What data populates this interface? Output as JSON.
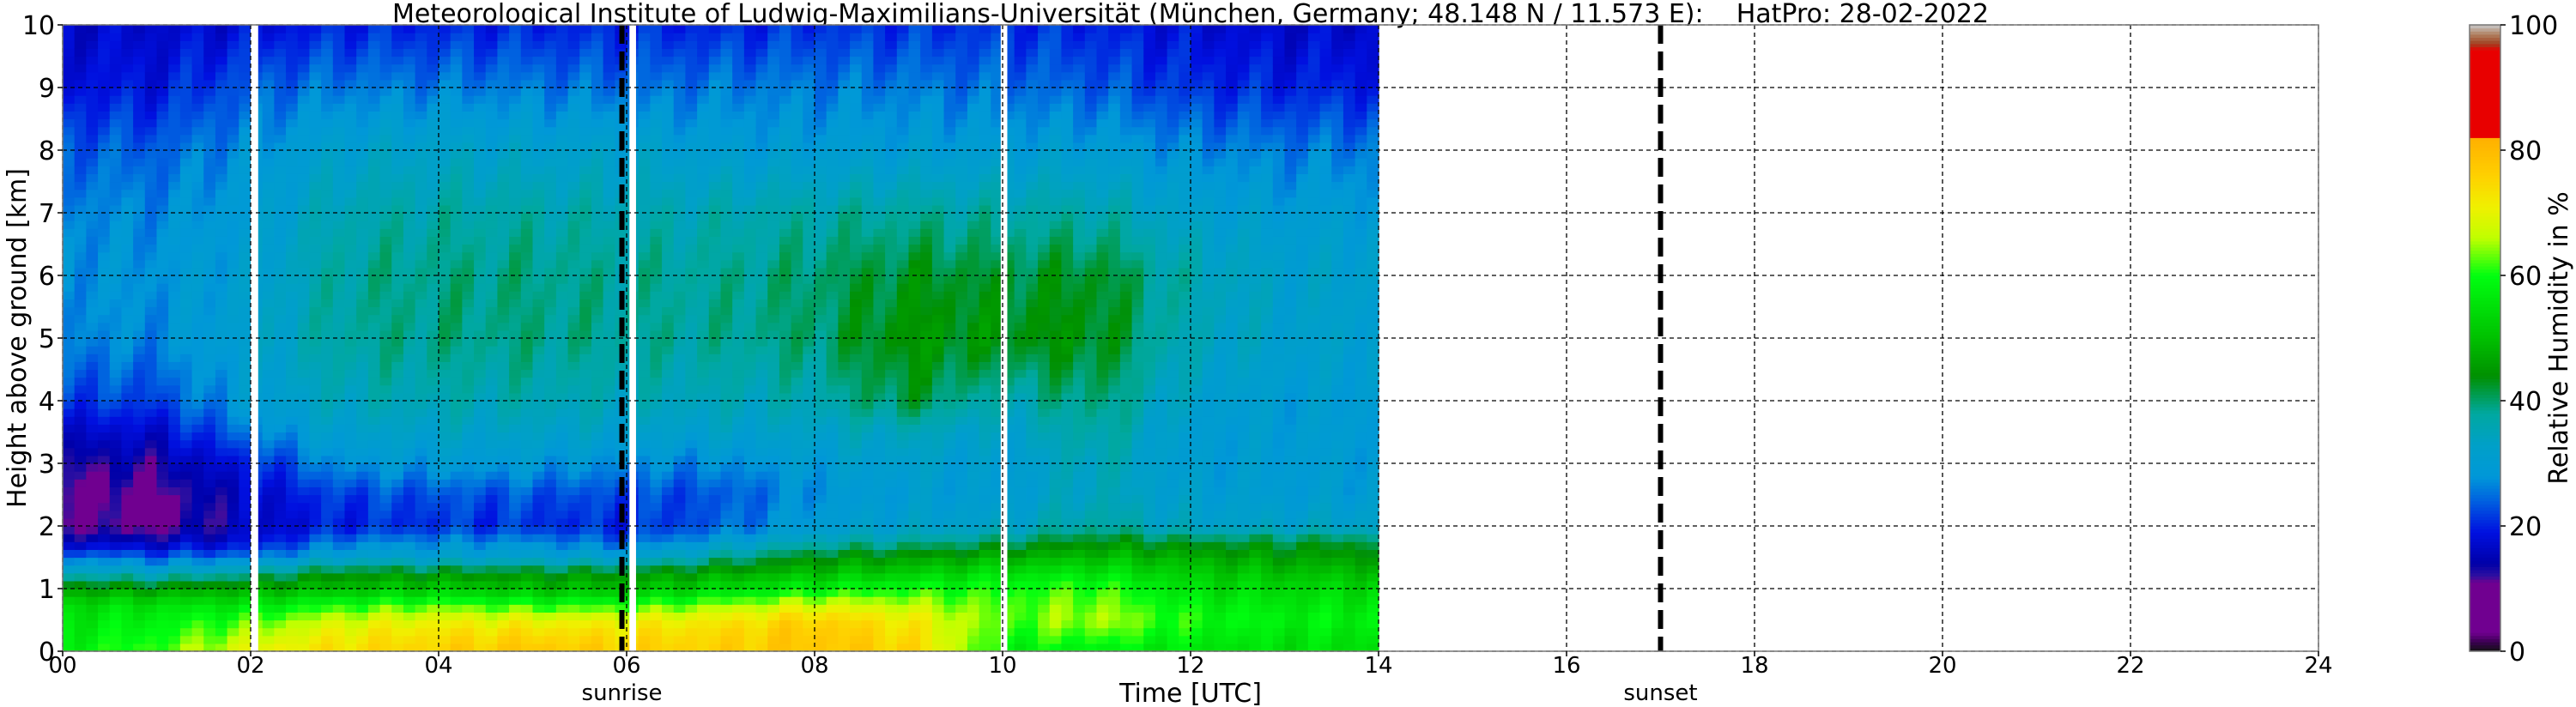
{
  "chart_data": {
    "type": "heatmap",
    "title": "Meteorological Institute of Ludwig-Maximilians-Universität (München, Germany; 48.148 N / 11.573 E):    HatPro: 28-02-2022",
    "xlabel": "Time [UTC]",
    "ylabel": "Height above ground [km]",
    "xlim": [
      0,
      24
    ],
    "ylim": [
      0,
      10
    ],
    "xticks": [
      "00",
      "02",
      "04",
      "06",
      "08",
      "10",
      "12",
      "14",
      "16",
      "18",
      "20",
      "22",
      "24"
    ],
    "xtick_values": [
      0,
      2,
      4,
      6,
      8,
      10,
      12,
      14,
      16,
      18,
      20,
      22,
      24
    ],
    "yticks": [
      "0",
      "1",
      "2",
      "3",
      "4",
      "5",
      "6",
      "7",
      "8",
      "9",
      "10"
    ],
    "grid": true,
    "markers": [
      {
        "label": "sunrise",
        "time": 5.95
      },
      {
        "label": "sunset",
        "time": 17.0
      }
    ],
    "missing_intervals": [
      [
        2.0,
        2.08
      ],
      [
        6.03,
        6.1
      ],
      [
        9.98,
        10.05
      ]
    ],
    "times": [
      0,
      1,
      2,
      3,
      4,
      5,
      6,
      7,
      8,
      9,
      10,
      11,
      12,
      13,
      14
    ],
    "heights": [
      0,
      0.25,
      0.5,
      0.75,
      1,
      1.25,
      1.5,
      1.75,
      2,
      2.5,
      3,
      3.5,
      4,
      5,
      6,
      7,
      8,
      9,
      10
    ],
    "values": [
      [
        58,
        62,
        70,
        74,
        76,
        78,
        76,
        76,
        78,
        76,
        58,
        58,
        56,
        55,
        55
      ],
      [
        57,
        60,
        66,
        72,
        74,
        75,
        74,
        75,
        78,
        74,
        60,
        62,
        58,
        56,
        56
      ],
      [
        56,
        58,
        62,
        68,
        70,
        70,
        70,
        72,
        76,
        72,
        62,
        66,
        60,
        58,
        58
      ],
      [
        54,
        55,
        56,
        60,
        62,
        60,
        60,
        64,
        68,
        66,
        62,
        64,
        58,
        56,
        56
      ],
      [
        46,
        46,
        48,
        50,
        52,
        50,
        50,
        54,
        58,
        60,
        60,
        62,
        55,
        54,
        54
      ],
      [
        36,
        34,
        38,
        44,
        44,
        44,
        44,
        47,
        50,
        52,
        55,
        56,
        52,
        50,
        50
      ],
      [
        26,
        24,
        26,
        32,
        32,
        32,
        32,
        38,
        44,
        46,
        48,
        50,
        48,
        46,
        46
      ],
      [
        16,
        15,
        18,
        26,
        27,
        27,
        24,
        30,
        36,
        38,
        40,
        44,
        42,
        42,
        42
      ],
      [
        11,
        10,
        16,
        20,
        21,
        21,
        20,
        24,
        30,
        32,
        33,
        38,
        33,
        33,
        33
      ],
      [
        10,
        10,
        17,
        22,
        23,
        23,
        22,
        23,
        28,
        30,
        30,
        35,
        31,
        30,
        30
      ],
      [
        13,
        13,
        20,
        28,
        29,
        29,
        27,
        27,
        30,
        32,
        30,
        36,
        30,
        30,
        30
      ],
      [
        17,
        17,
        26,
        32,
        33,
        33,
        32,
        32,
        33,
        35,
        32,
        38,
        30,
        30,
        30
      ],
      [
        22,
        22,
        30,
        35,
        36,
        36,
        35,
        35,
        36,
        42,
        36,
        40,
        32,
        30,
        30
      ],
      [
        27,
        27,
        32,
        38,
        39,
        39,
        38,
        38,
        40,
        45,
        44,
        44,
        35,
        32,
        32
      ],
      [
        28,
        28,
        31,
        38,
        39,
        39,
        38,
        38,
        40,
        43,
        42,
        43,
        36,
        32,
        32
      ],
      [
        27,
        27,
        30,
        36,
        37,
        37,
        36,
        36,
        37,
        38,
        37,
        37,
        32,
        30,
        30
      ],
      [
        24,
        24,
        28,
        32,
        33,
        32,
        32,
        30,
        30,
        30,
        30,
        30,
        27,
        26,
        26
      ],
      [
        19,
        19,
        24,
        26,
        26,
        26,
        25,
        26,
        26,
        26,
        25,
        24,
        21,
        20,
        20
      ],
      [
        17,
        17,
        18,
        20,
        20,
        20,
        20,
        20,
        21,
        21,
        21,
        20,
        18,
        17,
        17
      ]
    ],
    "data_end_time": 14,
    "colorbar": {
      "label": "Relative Humidity in %",
      "range": [
        0,
        100
      ],
      "ticks": [
        "0",
        "20",
        "40",
        "60",
        "80",
        "100"
      ],
      "tick_values": [
        0,
        20,
        40,
        60,
        80,
        100
      ],
      "stops": [
        [
          0,
          "#111111"
        ],
        [
          1.5,
          "#3a0050"
        ],
        [
          3,
          "#700090"
        ],
        [
          11,
          "#700090"
        ],
        [
          12,
          "#3010a0"
        ],
        [
          14,
          "#0000a8"
        ],
        [
          19,
          "#0010e0"
        ],
        [
          24,
          "#0060e0"
        ],
        [
          28,
          "#0098d8"
        ],
        [
          33,
          "#00a0c8"
        ],
        [
          38,
          "#00a8a0"
        ],
        [
          44,
          "#009000"
        ],
        [
          50,
          "#00c000"
        ],
        [
          60,
          "#00ff10"
        ],
        [
          66,
          "#c0ff00"
        ],
        [
          71,
          "#f0f000"
        ],
        [
          76,
          "#ffd000"
        ],
        [
          81.9,
          "#ffb000"
        ],
        [
          82,
          "#e80000"
        ],
        [
          96,
          "#e80000"
        ],
        [
          97,
          "#a04020"
        ],
        [
          98.5,
          "#b08060"
        ],
        [
          100,
          "#c8c8c8"
        ]
      ]
    }
  }
}
